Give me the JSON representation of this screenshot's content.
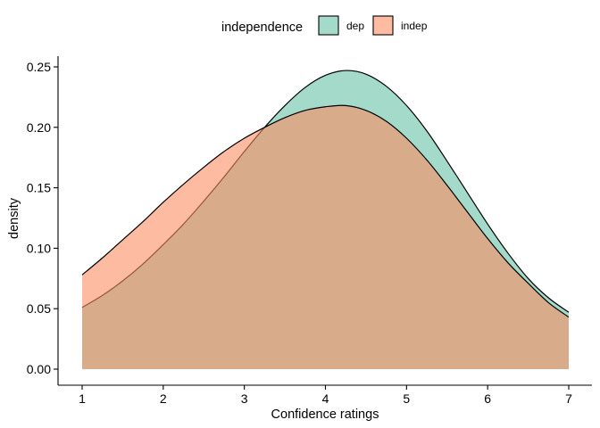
{
  "chart_data": {
    "type": "area",
    "subtype": "density",
    "title": "",
    "xlabel": "Confidence ratings",
    "ylabel": "density",
    "xlim": [
      1,
      7
    ],
    "ylim": [
      0,
      0.25
    ],
    "x_ticks": [
      "1",
      "2",
      "3",
      "4",
      "5",
      "6",
      "7"
    ],
    "y_ticks": [
      "0.00",
      "0.05",
      "0.10",
      "0.15",
      "0.20",
      "0.25"
    ],
    "grid": false,
    "legend": {
      "title": "independence",
      "position": "top"
    },
    "series": [
      {
        "name": "dep",
        "color": "#66C2A5",
        "points": [
          [
            1.0,
            0.051
          ],
          [
            1.25,
            0.061
          ],
          [
            1.5,
            0.073
          ],
          [
            1.75,
            0.087
          ],
          [
            2.0,
            0.103
          ],
          [
            2.25,
            0.12
          ],
          [
            2.5,
            0.139
          ],
          [
            2.75,
            0.159
          ],
          [
            3.0,
            0.18
          ],
          [
            3.25,
            0.2
          ],
          [
            3.5,
            0.218
          ],
          [
            3.75,
            0.233
          ],
          [
            4.0,
            0.243
          ],
          [
            4.25,
            0.247
          ],
          [
            4.5,
            0.244
          ],
          [
            4.75,
            0.234
          ],
          [
            5.0,
            0.218
          ],
          [
            5.25,
            0.197
          ],
          [
            5.5,
            0.172
          ],
          [
            5.75,
            0.146
          ],
          [
            6.0,
            0.12
          ],
          [
            6.25,
            0.096
          ],
          [
            6.5,
            0.075
          ],
          [
            6.75,
            0.059
          ],
          [
            7.0,
            0.047
          ]
        ]
      },
      {
        "name": "indep",
        "color": "#FC8D62",
        "points": [
          [
            1.0,
            0.078
          ],
          [
            1.25,
            0.092
          ],
          [
            1.5,
            0.107
          ],
          [
            1.75,
            0.122
          ],
          [
            2.0,
            0.138
          ],
          [
            2.25,
            0.153
          ],
          [
            2.5,
            0.167
          ],
          [
            2.75,
            0.18
          ],
          [
            3.0,
            0.191
          ],
          [
            3.25,
            0.2
          ],
          [
            3.5,
            0.208
          ],
          [
            3.75,
            0.214
          ],
          [
            4.0,
            0.217
          ],
          [
            4.25,
            0.218
          ],
          [
            4.5,
            0.214
          ],
          [
            4.75,
            0.205
          ],
          [
            5.0,
            0.191
          ],
          [
            5.25,
            0.173
          ],
          [
            5.5,
            0.152
          ],
          [
            5.75,
            0.13
          ],
          [
            6.0,
            0.108
          ],
          [
            6.25,
            0.088
          ],
          [
            6.5,
            0.071
          ],
          [
            6.75,
            0.055
          ],
          [
            7.0,
            0.043
          ]
        ]
      }
    ]
  }
}
